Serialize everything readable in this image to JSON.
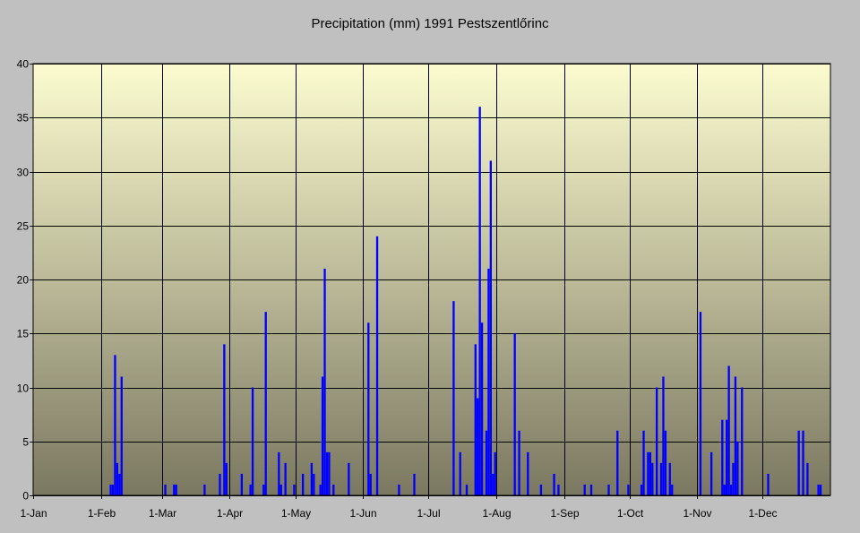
{
  "colors": {
    "background": "#c0c0c0",
    "plot_top": "#fcfcd0",
    "plot_bottom": "#7b7861",
    "bars": "#0000ff",
    "grid": "#000000"
  },
  "chart_data": {
    "type": "bar",
    "title": "Precipitation (mm) 1991 Pestszentlőrinc",
    "xlabel": "",
    "ylabel": "",
    "ylim": [
      0,
      40
    ],
    "yticks": [
      0,
      5,
      10,
      15,
      20,
      25,
      30,
      35,
      40
    ],
    "xlim": [
      "1991-01-01",
      "1991-12-31"
    ],
    "xtick_dates": [
      "1991-01-01",
      "1991-02-01",
      "1991-03-01",
      "1991-04-01",
      "1991-05-01",
      "1991-06-01",
      "1991-07-01",
      "1991-08-01",
      "1991-09-01",
      "1991-10-01",
      "1991-11-01",
      "1991-12-01"
    ],
    "xtick_labels": [
      "1-Jan",
      "1-Feb",
      "1-Mar",
      "1-Apr",
      "1-May",
      "1-Jun",
      "1-Jul",
      "1-Aug",
      "1-Sep",
      "1-Oct",
      "1-Nov",
      "1-Dec"
    ],
    "grid": true,
    "legend": "none",
    "series": [
      {
        "points": [
          [
            "1991-02-05",
            1
          ],
          [
            "1991-02-06",
            1
          ],
          [
            "1991-02-07",
            13
          ],
          [
            "1991-02-08",
            3
          ],
          [
            "1991-02-09",
            2
          ],
          [
            "1991-02-10",
            11
          ],
          [
            "1991-03-02",
            1
          ],
          [
            "1991-03-06",
            1
          ],
          [
            "1991-03-07",
            1
          ],
          [
            "1991-03-20",
            1
          ],
          [
            "1991-03-27",
            2
          ],
          [
            "1991-03-29",
            14
          ],
          [
            "1991-03-30",
            3
          ],
          [
            "1991-04-06",
            2
          ],
          [
            "1991-04-10",
            1
          ],
          [
            "1991-04-11",
            10
          ],
          [
            "1991-04-16",
            1
          ],
          [
            "1991-04-17",
            17
          ],
          [
            "1991-04-23",
            4
          ],
          [
            "1991-04-24",
            1
          ],
          [
            "1991-04-26",
            3
          ],
          [
            "1991-04-30",
            1
          ],
          [
            "1991-05-04",
            2
          ],
          [
            "1991-05-08",
            3
          ],
          [
            "1991-05-09",
            2
          ],
          [
            "1991-05-12",
            1
          ],
          [
            "1991-05-13",
            11
          ],
          [
            "1991-05-14",
            21
          ],
          [
            "1991-05-15",
            4
          ],
          [
            "1991-05-16",
            4
          ],
          [
            "1991-05-18",
            1
          ],
          [
            "1991-05-25",
            3
          ],
          [
            "1991-06-03",
            16
          ],
          [
            "1991-06-04",
            2
          ],
          [
            "1991-06-07",
            24
          ],
          [
            "1991-06-17",
            1
          ],
          [
            "1991-06-24",
            2
          ],
          [
            "1991-07-12",
            18
          ],
          [
            "1991-07-15",
            4
          ],
          [
            "1991-07-18",
            1
          ],
          [
            "1991-07-22",
            14
          ],
          [
            "1991-07-23",
            9
          ],
          [
            "1991-07-24",
            36
          ],
          [
            "1991-07-25",
            16
          ],
          [
            "1991-07-27",
            6
          ],
          [
            "1991-07-28",
            21
          ],
          [
            "1991-07-29",
            31
          ],
          [
            "1991-07-30",
            2
          ],
          [
            "1991-07-31",
            4
          ],
          [
            "1991-08-09",
            15
          ],
          [
            "1991-08-11",
            6
          ],
          [
            "1991-08-15",
            4
          ],
          [
            "1991-08-21",
            1
          ],
          [
            "1991-08-27",
            2
          ],
          [
            "1991-08-29",
            1
          ],
          [
            "1991-09-10",
            1
          ],
          [
            "1991-09-13",
            1
          ],
          [
            "1991-09-21",
            1
          ],
          [
            "1991-09-25",
            6
          ],
          [
            "1991-09-30",
            1
          ],
          [
            "1991-10-06",
            1
          ],
          [
            "1991-10-07",
            6
          ],
          [
            "1991-10-09",
            4
          ],
          [
            "1991-10-10",
            4
          ],
          [
            "1991-10-11",
            3
          ],
          [
            "1991-10-13",
            10
          ],
          [
            "1991-10-15",
            3
          ],
          [
            "1991-10-16",
            11
          ],
          [
            "1991-10-17",
            6
          ],
          [
            "1991-10-19",
            3
          ],
          [
            "1991-10-20",
            1
          ],
          [
            "1991-11-02",
            17
          ],
          [
            "1991-11-07",
            4
          ],
          [
            "1991-11-12",
            7
          ],
          [
            "1991-11-13",
            1
          ],
          [
            "1991-11-14",
            7
          ],
          [
            "1991-11-15",
            12
          ],
          [
            "1991-11-16",
            1
          ],
          [
            "1991-11-17",
            3
          ],
          [
            "1991-11-18",
            11
          ],
          [
            "1991-11-19",
            5
          ],
          [
            "1991-11-21",
            10
          ],
          [
            "1991-12-03",
            2
          ],
          [
            "1991-12-17",
            6
          ],
          [
            "1991-12-19",
            6
          ],
          [
            "1991-12-21",
            3
          ],
          [
            "1991-12-26",
            1
          ],
          [
            "1991-12-27",
            1
          ]
        ]
      }
    ]
  }
}
